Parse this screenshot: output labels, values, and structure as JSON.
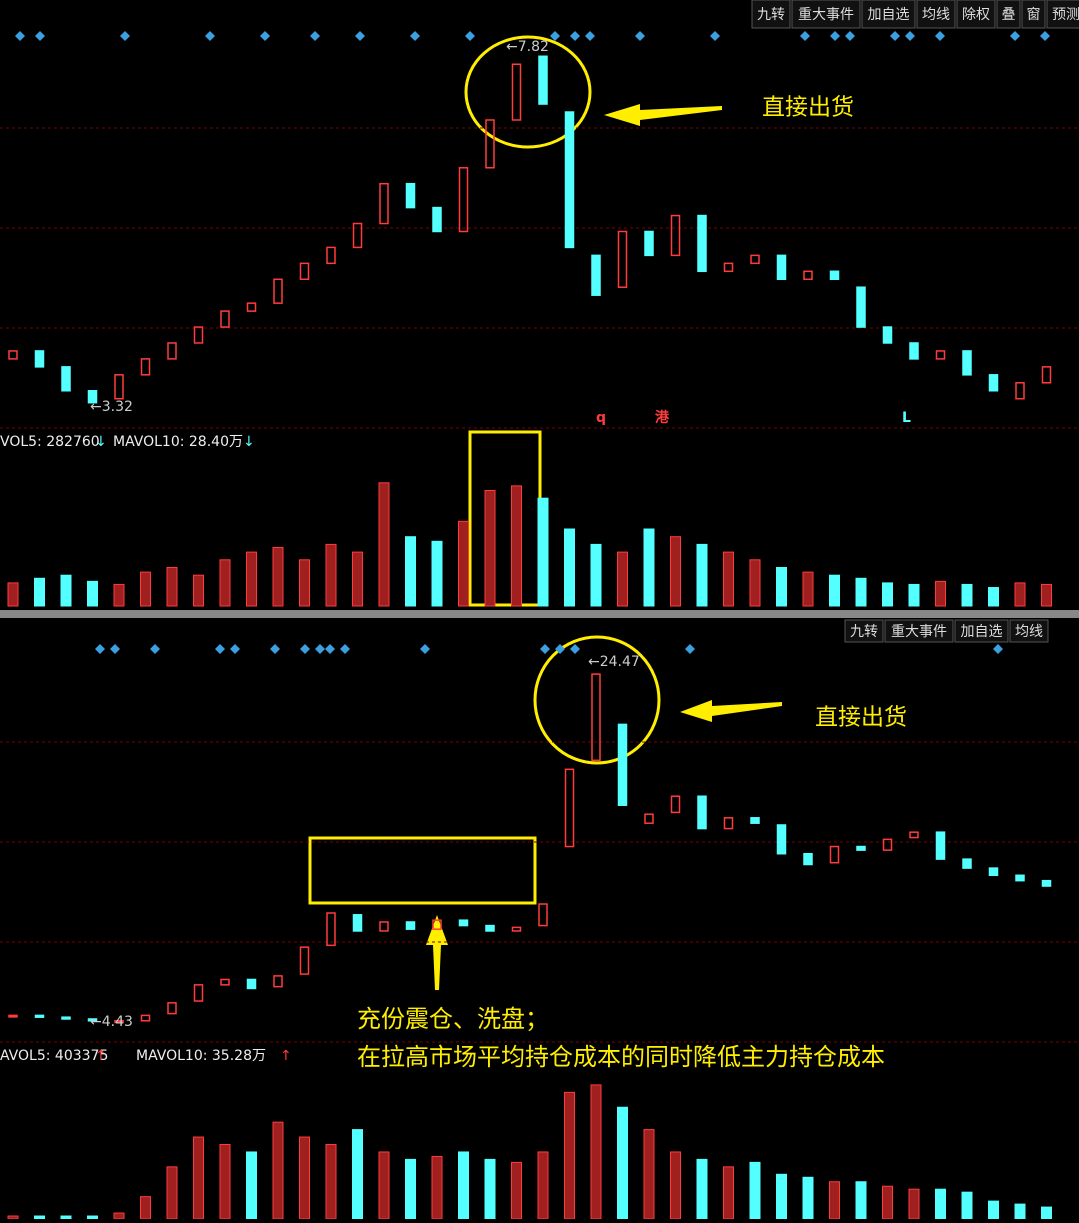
{
  "panels": [
    {
      "toolbar": [
        "九转",
        "重大事件",
        "加自选",
        "均线",
        "除权",
        "叠",
        "窗",
        "预测"
      ],
      "price": {
        "open": [
          3.9,
          4.0,
          3.8,
          3.5,
          3.4,
          3.7,
          3.9,
          4.1,
          4.3,
          4.5,
          4.6,
          4.9,
          5.1,
          5.3,
          5.6,
          6.1,
          5.8,
          5.5,
          6.3,
          6.9,
          7.7,
          7.0,
          5.2,
          4.8,
          5.5,
          5.2,
          5.7,
          5.0,
          5.1,
          5.2,
          4.9,
          5.0,
          4.8,
          4.3,
          4.1,
          3.9,
          4.0,
          3.7,
          3.4,
          3.6
        ],
        "close": [
          4.0,
          3.8,
          3.5,
          3.35,
          3.7,
          3.9,
          4.1,
          4.3,
          4.5,
          4.6,
          4.9,
          5.1,
          5.3,
          5.6,
          6.1,
          5.8,
          5.5,
          6.3,
          6.9,
          7.6,
          7.1,
          5.3,
          4.7,
          5.5,
          5.2,
          5.7,
          5.0,
          5.1,
          5.2,
          4.9,
          5.0,
          4.9,
          4.3,
          4.1,
          3.9,
          4.0,
          3.7,
          3.5,
          3.6,
          3.8
        ],
        "ylim": [
          3.07,
          8.03
        ],
        "high_label": "←7.82",
        "low_label": "←3.32",
        "markers": [
          "q",
          "港",
          "L"
        ]
      },
      "annotation": "直接出货",
      "volume": {
        "vol5": "VOL5: 282760",
        "vol5_arrow": "↓",
        "mavol10": "MAVOL10: 28.40万",
        "mavol10_arrow": "↓",
        "values": [
          15,
          18,
          20,
          16,
          14,
          22,
          25,
          20,
          30,
          35,
          38,
          30,
          40,
          35,
          80,
          45,
          42,
          55,
          75,
          78,
          70,
          50,
          40,
          35,
          50,
          45,
          40,
          35,
          30,
          25,
          22,
          20,
          18,
          15,
          14,
          16,
          14,
          12,
          15,
          14
        ],
        "vlim": [
          0,
          100
        ]
      }
    },
    {
      "toolbar": [
        "九转",
        "重大事件",
        "加自选",
        "均线"
      ],
      "price": {
        "open": [
          4.8,
          4.8,
          4.7,
          4.6,
          4.5,
          4.5,
          4.9,
          5.6,
          6.5,
          6.8,
          6.4,
          7.1,
          8.7,
          10.4,
          9.5,
          10.0,
          9.6,
          10.1,
          9.8,
          9.5,
          9.8,
          14.2,
          19.0,
          21.0,
          15.5,
          16.1,
          17.0,
          15.2,
          15.8,
          15.4,
          13.8,
          13.3,
          14.2,
          14.0,
          14.7,
          15.0,
          13.5,
          13.0,
          12.6,
          12.3
        ],
        "close": [
          4.8,
          4.7,
          4.6,
          4.5,
          4.5,
          4.8,
          5.5,
          6.5,
          6.8,
          6.3,
          7.0,
          8.6,
          10.5,
          9.5,
          10.0,
          9.6,
          10.1,
          9.8,
          9.5,
          9.7,
          11.0,
          18.5,
          23.8,
          16.5,
          16.0,
          17.0,
          15.2,
          15.8,
          15.5,
          13.8,
          13.2,
          14.2,
          14.0,
          14.6,
          15.0,
          13.5,
          13.0,
          12.6,
          12.3,
          12.0
        ],
        "ylim": [
          3.43,
          25.42
        ],
        "high_label": "←24.47",
        "low_label": "←4.43"
      },
      "annotation": "直接出货",
      "volume": {
        "vol5": "AVOL5: 403375",
        "vol5_arrow": "↑",
        "mavol10": "MAVOL10: 35.28万",
        "mavol10_arrow": "↑",
        "values": [
          2,
          2,
          2,
          2,
          4,
          15,
          35,
          55,
          50,
          45,
          65,
          55,
          50,
          60,
          45,
          40,
          42,
          45,
          40,
          38,
          45,
          85,
          90,
          75,
          60,
          45,
          40,
          35,
          38,
          30,
          28,
          25,
          25,
          22,
          20,
          20,
          18,
          12,
          10,
          8
        ],
        "vlim": [
          0,
          100
        ]
      }
    }
  ],
  "wash_note": [
    "充份震仓、洗盘；",
    "在拉高市场平均持仓成本的同时降低主力持仓成本"
  ]
}
